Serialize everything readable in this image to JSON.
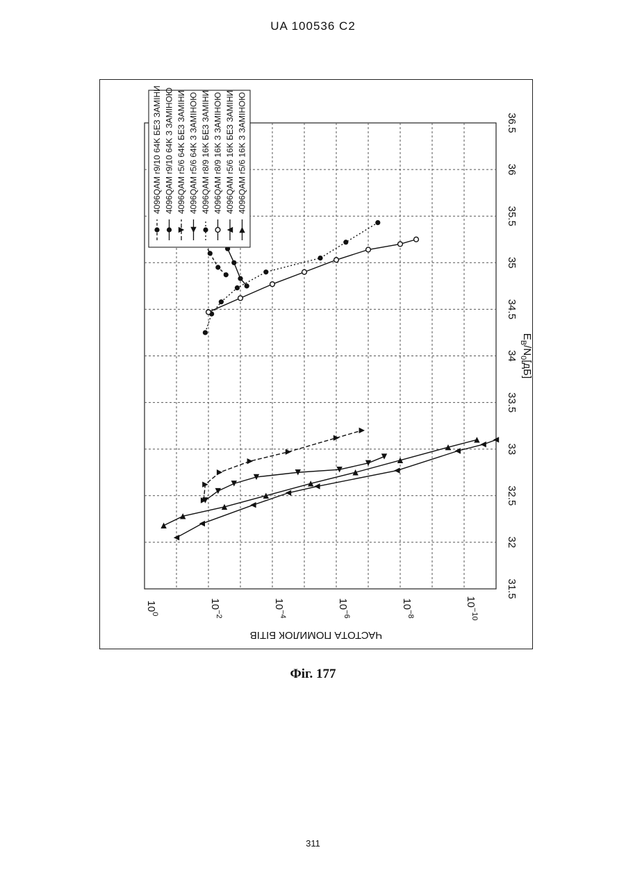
{
  "header": {
    "doc_id": "UA   100536   C2"
  },
  "caption": "Фіг. 177",
  "page_number": "311",
  "chart_data": {
    "type": "line",
    "orientation": "rotated-90-clockwise",
    "xlabel": "E_B/N_0[дБ]",
    "xlabel_main": "E",
    "xlabel_sub1": "B",
    "xlabel_mid": "/N",
    "xlabel_sub2": "0",
    "xlabel_tail": "[дБ]",
    "ylabel": "ЧАСТОТА ПОМИЛОК БІТІВ",
    "xlim": [
      31.5,
      36.5
    ],
    "x_ticks": [
      "31.5",
      "32",
      "32.5",
      "33",
      "33.5",
      "34",
      "34.5",
      "35",
      "35.5",
      "36",
      "36.5"
    ],
    "y_scale": "log",
    "ylim_exp": [
      -11,
      0
    ],
    "y_ticks": [
      {
        "exp": 0,
        "base": "10",
        "sup": "0"
      },
      {
        "exp": -2,
        "base": "10",
        "sup": "−2"
      },
      {
        "exp": -4,
        "base": "10",
        "sup": "−4"
      },
      {
        "exp": -6,
        "base": "10",
        "sup": "−6"
      },
      {
        "exp": -8,
        "base": "10",
        "sup": "−8"
      },
      {
        "exp": -10,
        "base": "10",
        "sup": "−10"
      }
    ],
    "grid": true,
    "legend_position": "top-left",
    "series": [
      {
        "name": "4096QAM r9/10 64K БЕЗ ЗАМІНИ",
        "marker": "circle-filled",
        "dash": "4 3",
        "x": [
          34.87,
          34.95,
          35.1,
          35.23,
          35.47,
          35.67,
          35.73,
          35.75
        ],
        "y_exp": [
          -2.55,
          -2.3,
          -2.05,
          -1.85,
          -1.7,
          -1.6,
          -1.55,
          -1.5
        ]
      },
      {
        "name": "4096QAM r9/10 64K З ЗАМІНОЮ",
        "marker": "circle-filled",
        "dash": "",
        "x": [
          34.75,
          34.83,
          35.0,
          35.15,
          35.3,
          35.37,
          35.42,
          35.47
        ],
        "y_exp": [
          -3.2,
          -3.0,
          -2.8,
          -2.6,
          -2.6,
          -2.4,
          -2.3,
          -2.2
        ]
      },
      {
        "name": "4096QAM r5/6 64K БЕЗ ЗАМІНИ",
        "marker": "triangle-up",
        "dash": "6 3",
        "x": [
          32.45,
          32.62,
          32.75,
          32.87,
          32.97,
          33.12,
          33.2
        ],
        "y_exp": [
          -1.85,
          -1.9,
          -2.35,
          -3.3,
          -4.5,
          -6.0,
          -6.8
        ]
      },
      {
        "name": "4096QAM r5/6 64K З ЗАМІНОЮ",
        "marker": "triangle-left",
        "dash": "",
        "x": [
          32.45,
          32.55,
          32.63,
          32.7,
          32.75,
          32.78,
          32.85,
          32.92
        ],
        "y_exp": [
          -1.9,
          -2.3,
          -2.8,
          -3.5,
          -4.8,
          -6.1,
          -7.0,
          -7.5
        ]
      },
      {
        "name": "4096QAM r8/9 16K БЕЗ ЗАМІНИ",
        "marker": "circle-filled",
        "dash": "2 3",
        "x": [
          34.25,
          34.45,
          34.58,
          34.73,
          34.9,
          35.05,
          35.22,
          35.43
        ],
        "y_exp": [
          -1.9,
          -2.1,
          -2.4,
          -2.9,
          -3.8,
          -5.5,
          -6.3,
          -7.3
        ]
      },
      {
        "name": "4096QAM r8/9 16K З ЗАМІНОЮ",
        "marker": "circle-open",
        "dash": "",
        "x": [
          34.47,
          34.62,
          34.77,
          34.9,
          35.03,
          35.14,
          35.2,
          35.25
        ],
        "y_exp": [
          -2.0,
          -3.0,
          -4.0,
          -5.0,
          -6.0,
          -7.0,
          -8.0,
          -8.5
        ]
      },
      {
        "name": "4096QAM r5/6 16K БЕЗ ЗАМІНИ",
        "marker": "triangle-down",
        "dash": "",
        "x": [
          32.05,
          32.2,
          32.4,
          32.53,
          32.6,
          32.77,
          32.98,
          33.05,
          33.1
        ],
        "y_exp": [
          -1.0,
          -1.8,
          -3.4,
          -4.5,
          -5.4,
          -7.9,
          -9.8,
          -10.6,
          -11.0
        ]
      },
      {
        "name": "4096QAM r5/6 16K З ЗАМІНОЮ",
        "marker": "triangle-right",
        "dash": "",
        "x": [
          32.18,
          32.28,
          32.38,
          32.5,
          32.63,
          32.75,
          32.88,
          33.02,
          33.1
        ],
        "y_exp": [
          -0.6,
          -1.2,
          -2.5,
          -3.8,
          -5.2,
          -6.6,
          -8.0,
          -9.5,
          -10.4
        ]
      }
    ]
  }
}
